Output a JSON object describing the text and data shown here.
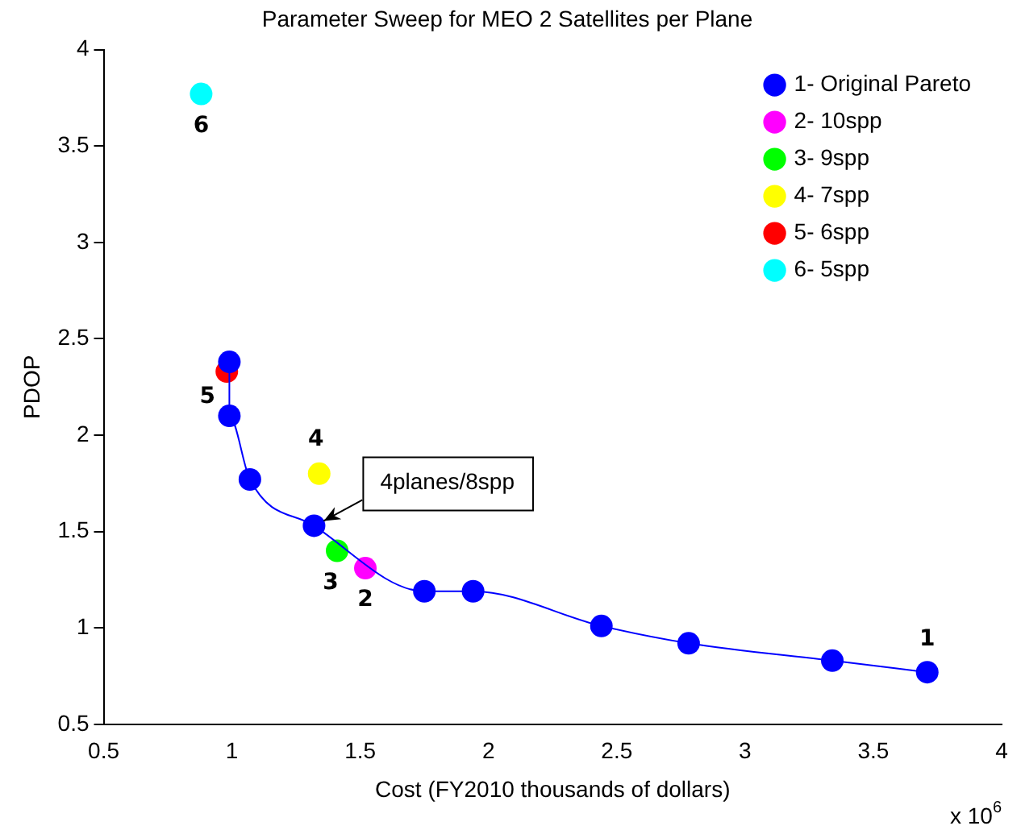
{
  "chart_data": {
    "type": "scatter",
    "title": "Parameter Sweep for MEO 2 Satellites per Plane",
    "xlabel": "Cost (FY2010 thousands of dollars)",
    "ylabel": "PDOP",
    "xlim": [
      0.5,
      4
    ],
    "xticks": [
      0.5,
      1,
      1.5,
      2,
      2.5,
      3,
      3.5,
      4
    ],
    "ylim": [
      0.5,
      4
    ],
    "yticks": [
      0.5,
      1,
      1.5,
      2,
      2.5,
      3,
      3.5,
      4
    ],
    "grid": false,
    "legend": "top right",
    "marker": "circle",
    "line_style": "solid",
    "series": [
      {
        "name": "1- Original Pareto",
        "type": "line",
        "color": "#0000ff",
        "x": [
          0.99,
          0.99,
          1.07,
          1.32,
          1.75,
          1.94,
          2.44,
          2.78,
          3.34,
          3.71
        ],
        "values": [
          2.38,
          2.1,
          1.77,
          1.53,
          1.19,
          1.19,
          1.01,
          0.92,
          0.83,
          0.77
        ]
      },
      {
        "name": "2- 10spp",
        "color": "#ff00ff",
        "x": [
          1.52
        ],
        "values": [
          1.31
        ]
      },
      {
        "name": "3- 9spp",
        "color": "#00ff00",
        "x": [
          1.41
        ],
        "values": [
          1.4
        ]
      },
      {
        "name": "4- 7spp",
        "color": "#ffff00",
        "x": [
          1.34
        ],
        "values": [
          1.8
        ]
      },
      {
        "name": "5- 6spp",
        "color": "#ff0000",
        "x": [
          0.98
        ],
        "values": [
          2.33
        ]
      },
      {
        "name": "6- 5spp",
        "color": "#00ffff",
        "x": [
          0.88
        ],
        "values": [
          3.77
        ]
      }
    ],
    "annotations": [
      {
        "text": "1",
        "x": 3.71,
        "y": 0.77
      },
      {
        "text": "2",
        "x": 1.52,
        "y": 1.31
      },
      {
        "text": "3",
        "x": 1.41,
        "y": 1.4
      },
      {
        "text": "4",
        "x": 1.34,
        "y": 1.8
      },
      {
        "text": "5",
        "x": 0.98,
        "y": 2.33
      },
      {
        "text": "6",
        "x": 0.88,
        "y": 3.77
      },
      {
        "text": "4planes/8spp",
        "x": 1.32,
        "y": 1.53
      },
      "x 10$^{6}$"
    ]
  }
}
